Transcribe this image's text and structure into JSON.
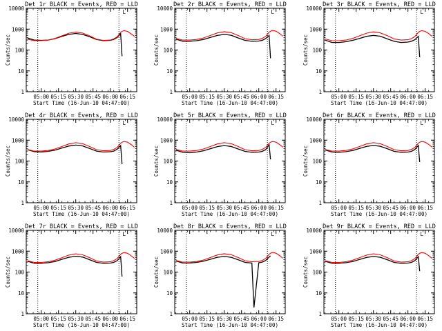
{
  "chart_data": [
    {
      "type": "line",
      "title": "Det 1r BLACK = Events, RED = LLD",
      "xlabel": "Start Time (16-Jun-10 04:47:00)",
      "ylabel": "Counts/sec",
      "yscale": "log",
      "ylim": [
        1,
        10000
      ],
      "xlim": [
        4.783,
        6.383
      ],
      "xtick_labels": [
        "05:00",
        "05:15",
        "05:30",
        "05:45",
        "06:00",
        "06:15"
      ],
      "ytick_labels": [
        "1",
        "10",
        "100",
        "1000",
        "10000"
      ],
      "marker": "L",
      "vlines_at": [
        4.95,
        6.125
      ],
      "x": [
        4.8,
        4.9,
        5.0,
        5.1,
        5.2,
        5.3,
        5.4,
        5.5,
        5.6,
        5.7,
        5.8,
        5.9,
        6.0,
        6.05,
        6.1,
        6.15,
        6.17,
        6.2,
        6.25,
        6.3,
        6.35
      ],
      "series": [
        {
          "name": "Events",
          "color": "#000000",
          "values": [
            380,
            300,
            290,
            300,
            350,
            450,
            560,
            620,
            560,
            430,
            320,
            280,
            290,
            320,
            400,
            600,
            50,
            null,
            null,
            null,
            null
          ]
        },
        {
          "name": "LLD",
          "color": "#ff0000",
          "values": [
            330,
            280,
            280,
            300,
            360,
            480,
            640,
            720,
            650,
            480,
            330,
            290,
            300,
            340,
            430,
            700,
            780,
            850,
            780,
            600,
            450
          ]
        }
      ]
    },
    {
      "type": "line",
      "title": "Det 2r BLACK = Events, RED = LLD",
      "xlabel": "Start Time (16-Jun-10 04:47:00)",
      "ylabel": "Counts/sec",
      "yscale": "log",
      "ylim": [
        1,
        10000
      ],
      "xlim": [
        4.783,
        6.383
      ],
      "xtick_labels": [
        "05:00",
        "05:15",
        "05:30",
        "05:45",
        "06:00",
        "06:15"
      ],
      "ytick_labels": [
        "1",
        "10",
        "100",
        "1000",
        "10000"
      ],
      "marker": "L",
      "vlines_at": [
        4.95,
        6.125
      ],
      "x": [
        4.8,
        4.9,
        5.0,
        5.1,
        5.2,
        5.3,
        5.4,
        5.5,
        5.6,
        5.7,
        5.8,
        5.9,
        6.0,
        6.05,
        6.1,
        6.15,
        6.17,
        6.2,
        6.25,
        6.3,
        6.35
      ],
      "series": [
        {
          "name": "Events",
          "color": "#000000",
          "values": [
            330,
            260,
            260,
            280,
            320,
            400,
            500,
            560,
            510,
            380,
            290,
            260,
            270,
            290,
            350,
            500,
            40,
            null,
            null,
            null,
            null
          ]
        },
        {
          "name": "LLD",
          "color": "#ff0000",
          "values": [
            360,
            300,
            300,
            320,
            380,
            500,
            660,
            760,
            680,
            500,
            350,
            310,
            320,
            360,
            450,
            720,
            800,
            870,
            800,
            620,
            460
          ]
        }
      ]
    },
    {
      "type": "line",
      "title": "Det 3r BLACK = Events, RED = LLD",
      "xlabel": "Start Time (16-Jun-10 04:47:00)",
      "ylabel": "Counts/sec",
      "yscale": "log",
      "ylim": [
        1,
        10000
      ],
      "xlim": [
        4.783,
        6.383
      ],
      "xtick_labels": [
        "05:00",
        "05:15",
        "05:30",
        "05:45",
        "06:00",
        "06:15"
      ],
      "ytick_labels": [
        "1",
        "10",
        "100",
        "1000",
        "10000"
      ],
      "marker": "L",
      "vlines_at": [
        4.95,
        6.125
      ],
      "x": [
        4.8,
        4.9,
        5.0,
        5.1,
        5.2,
        5.3,
        5.4,
        5.5,
        5.6,
        5.7,
        5.8,
        5.9,
        6.0,
        6.05,
        6.1,
        6.15,
        6.17,
        6.2,
        6.25,
        6.3,
        6.35
      ],
      "series": [
        {
          "name": "Events",
          "color": "#000000",
          "values": [
            300,
            230,
            230,
            250,
            290,
            360,
            450,
            500,
            460,
            340,
            260,
            230,
            240,
            260,
            310,
            450,
            45,
            null,
            null,
            null,
            null
          ]
        },
        {
          "name": "LLD",
          "color": "#ff0000",
          "values": [
            340,
            280,
            280,
            300,
            360,
            480,
            640,
            740,
            660,
            490,
            340,
            300,
            310,
            350,
            440,
            700,
            780,
            850,
            780,
            610,
            450
          ]
        }
      ]
    },
    {
      "type": "line",
      "title": "Det 4r BLACK = Events, RED = LLD",
      "xlabel": "Start Time (16-Jun-10 04:47:00)",
      "ylabel": "Counts/sec",
      "yscale": "log",
      "ylim": [
        1,
        10000
      ],
      "xlim": [
        4.783,
        6.383
      ],
      "xtick_labels": [
        "05:00",
        "05:15",
        "05:30",
        "05:45",
        "06:00",
        "06:15"
      ],
      "ytick_labels": [
        "1",
        "10",
        "100",
        "1000",
        "10000"
      ],
      "marker": "L",
      "vlines_at": [
        4.95,
        6.125
      ],
      "x": [
        4.8,
        4.9,
        5.0,
        5.1,
        5.2,
        5.3,
        5.4,
        5.5,
        5.6,
        5.7,
        5.8,
        5.9,
        6.0,
        6.05,
        6.1,
        6.15,
        6.17,
        6.2,
        6.25,
        6.3,
        6.35
      ],
      "series": [
        {
          "name": "Events",
          "color": "#000000",
          "values": [
            350,
            280,
            270,
            290,
            330,
            420,
            520,
            580,
            530,
            400,
            300,
            270,
            280,
            300,
            370,
            550,
            70,
            null,
            null,
            null,
            null
          ]
        },
        {
          "name": "LLD",
          "color": "#ff0000",
          "values": [
            360,
            300,
            300,
            320,
            380,
            500,
            660,
            760,
            680,
            500,
            350,
            310,
            320,
            360,
            450,
            720,
            800,
            870,
            800,
            620,
            460
          ]
        }
      ]
    },
    {
      "type": "line",
      "title": "Det 5r BLACK = Events, RED = LLD",
      "xlabel": "Start Time (16-Jun-10 04:47:00)",
      "ylabel": "Counts/sec",
      "yscale": "log",
      "ylim": [
        1,
        10000
      ],
      "xlim": [
        4.783,
        6.383
      ],
      "xtick_labels": [
        "05:00",
        "05:15",
        "05:30",
        "05:45",
        "06:00",
        "06:15"
      ],
      "ytick_labels": [
        "1",
        "10",
        "100",
        "1000",
        "10000"
      ],
      "marker": "L",
      "vlines_at": [
        4.95,
        6.125
      ],
      "x": [
        4.8,
        4.9,
        5.0,
        5.1,
        5.2,
        5.3,
        5.4,
        5.5,
        5.6,
        5.7,
        5.8,
        5.9,
        6.0,
        6.05,
        6.1,
        6.15,
        6.17,
        6.2,
        6.25,
        6.3,
        6.35
      ],
      "series": [
        {
          "name": "Events",
          "color": "#000000",
          "values": [
            330,
            260,
            250,
            270,
            310,
            390,
            490,
            550,
            500,
            380,
            290,
            260,
            270,
            290,
            350,
            600,
            120,
            null,
            null,
            null,
            null
          ]
        },
        {
          "name": "LLD",
          "color": "#ff0000",
          "values": [
            360,
            300,
            300,
            320,
            380,
            500,
            660,
            760,
            680,
            500,
            350,
            310,
            320,
            360,
            450,
            720,
            800,
            870,
            800,
            620,
            460
          ]
        }
      ]
    },
    {
      "type": "line",
      "title": "Det 6r BLACK = Events, RED = LLD",
      "xlabel": "Start Time (16-Jun-10 04:47:00)",
      "ylabel": "Counts/sec",
      "yscale": "log",
      "ylim": [
        1,
        10000
      ],
      "xlim": [
        4.783,
        6.383
      ],
      "xtick_labels": [
        "05:00",
        "05:15",
        "05:30",
        "05:45",
        "06:00",
        "06:15"
      ],
      "ytick_labels": [
        "1",
        "10",
        "100",
        "1000",
        "10000"
      ],
      "marker": "L",
      "vlines_at": [
        4.95,
        6.125
      ],
      "x": [
        4.8,
        4.9,
        5.0,
        5.1,
        5.2,
        5.3,
        5.4,
        5.5,
        5.6,
        5.7,
        5.8,
        5.9,
        6.0,
        6.05,
        6.1,
        6.15,
        6.17,
        6.2,
        6.25,
        6.3,
        6.35
      ],
      "series": [
        {
          "name": "Events",
          "color": "#000000",
          "values": [
            340,
            270,
            260,
            280,
            320,
            400,
            500,
            560,
            510,
            390,
            290,
            260,
            270,
            290,
            360,
            560,
            90,
            null,
            null,
            null,
            null
          ]
        },
        {
          "name": "LLD",
          "color": "#ff0000",
          "values": [
            360,
            300,
            300,
            320,
            380,
            500,
            660,
            760,
            680,
            500,
            350,
            310,
            320,
            360,
            450,
            720,
            800,
            870,
            800,
            620,
            460
          ]
        }
      ]
    },
    {
      "type": "line",
      "title": "Det 7r BLACK = Events, RED = LLD",
      "xlabel": "Start Time (16-Jun-10 04:47:00)",
      "ylabel": "Counts/sec",
      "yscale": "log",
      "ylim": [
        1,
        10000
      ],
      "xlim": [
        4.783,
        6.383
      ],
      "xtick_labels": [
        "05:00",
        "05:15",
        "05:30",
        "05:45",
        "06:00",
        "06:15"
      ],
      "ytick_labels": [
        "1",
        "10",
        "100",
        "1000",
        "10000"
      ],
      "marker": "L",
      "vlines_at": [
        4.95,
        6.125
      ],
      "x": [
        4.8,
        4.9,
        5.0,
        5.1,
        5.2,
        5.3,
        5.4,
        5.5,
        5.6,
        5.7,
        5.8,
        5.9,
        6.0,
        6.05,
        6.1,
        6.15,
        6.17,
        6.2,
        6.25,
        6.3,
        6.35
      ],
      "series": [
        {
          "name": "Events",
          "color": "#000000",
          "values": [
            330,
            260,
            260,
            280,
            320,
            410,
            510,
            570,
            520,
            390,
            290,
            260,
            270,
            290,
            350,
            550,
            60,
            null,
            null,
            null,
            null
          ]
        },
        {
          "name": "LLD",
          "color": "#ff0000",
          "values": [
            350,
            290,
            290,
            310,
            370,
            490,
            650,
            750,
            670,
            490,
            340,
            300,
            310,
            350,
            440,
            710,
            790,
            860,
            790,
            610,
            450
          ]
        }
      ]
    },
    {
      "type": "line",
      "title": "Det 8r BLACK = Events, RED = LLD",
      "xlabel": "Start Time (16-Jun-10 04:47:00)",
      "ylabel": "Counts/sec",
      "yscale": "log",
      "ylim": [
        1,
        10000
      ],
      "xlim": [
        4.783,
        6.383
      ],
      "xtick_labels": [
        "05:00",
        "05:15",
        "05:30",
        "05:45",
        "06:00",
        "06:15"
      ],
      "ytick_labels": [
        "1",
        "10",
        "100",
        "1000",
        "10000"
      ],
      "marker": "L",
      "vlines_at": [
        4.95,
        6.125
      ],
      "x": [
        4.8,
        4.9,
        5.0,
        5.1,
        5.2,
        5.3,
        5.4,
        5.5,
        5.6,
        5.7,
        5.8,
        5.9,
        5.93,
        6.0,
        6.05,
        6.1,
        6.15,
        6.17,
        6.2,
        6.25,
        6.3,
        6.35
      ],
      "series": [
        {
          "name": "Events",
          "color": "#000000",
          "values": [
            340,
            270,
            270,
            290,
            330,
            410,
            510,
            560,
            510,
            390,
            290,
            270,
            2,
            280,
            300,
            360,
            520,
            600,
            null,
            null,
            null,
            null
          ]
        },
        {
          "name": "LLD",
          "color": "#ff0000",
          "values": [
            360,
            300,
            300,
            320,
            380,
            500,
            660,
            760,
            680,
            500,
            350,
            310,
            320,
            320,
            360,
            450,
            720,
            800,
            870,
            800,
            620,
            460
          ]
        }
      ]
    },
    {
      "type": "line",
      "title": "Det 9r BLACK = Events, RED = LLD",
      "xlabel": "Start Time (16-Jun-10 04:47:00)",
      "ylabel": "Counts/sec",
      "yscale": "log",
      "ylim": [
        1,
        10000
      ],
      "xlim": [
        4.783,
        6.383
      ],
      "xtick_labels": [
        "05:00",
        "05:15",
        "05:30",
        "05:45",
        "06:00",
        "06:15"
      ],
      "ytick_labels": [
        "1",
        "10",
        "100",
        "1000",
        "10000"
      ],
      "marker": "L",
      "vlines_at": [
        4.95,
        6.125
      ],
      "x": [
        4.8,
        4.9,
        5.0,
        5.1,
        5.2,
        5.3,
        5.4,
        5.5,
        5.6,
        5.7,
        5.8,
        5.9,
        6.0,
        6.05,
        6.1,
        6.15,
        6.17,
        6.2,
        6.25,
        6.3,
        6.35
      ],
      "series": [
        {
          "name": "Events",
          "color": "#000000",
          "values": [
            330,
            260,
            260,
            280,
            320,
            400,
            500,
            560,
            510,
            390,
            290,
            260,
            270,
            290,
            350,
            550,
            110,
            null,
            null,
            null,
            null
          ]
        },
        {
          "name": "LLD",
          "color": "#ff0000",
          "values": [
            350,
            290,
            290,
            310,
            370,
            490,
            650,
            750,
            670,
            490,
            340,
            300,
            310,
            350,
            440,
            710,
            790,
            860,
            790,
            610,
            450
          ]
        }
      ]
    }
  ]
}
